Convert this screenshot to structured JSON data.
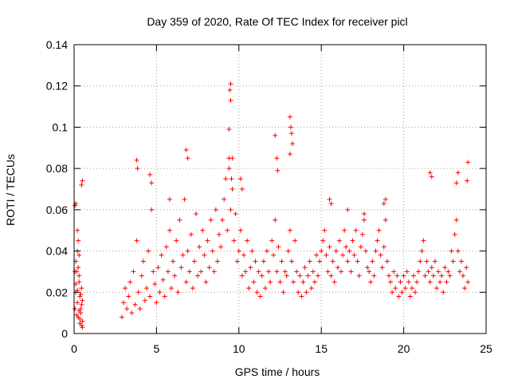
{
  "chart_data": {
    "type": "scatter",
    "title": "Day 359 of 2020, Rate Of TEC Index for receiver picl",
    "xlabel": "GPS time / hours",
    "ylabel": "ROTI / TECUs",
    "xlim": [
      0,
      25
    ],
    "ylim": [
      0,
      0.14
    ],
    "xticks": [
      0,
      5,
      10,
      15,
      20,
      25
    ],
    "yticks": [
      0,
      0.02,
      0.04,
      0.06,
      0.08,
      0.1,
      0.12,
      0.14
    ],
    "grid": true,
    "marker": "+",
    "color": "#ff0000",
    "series": [
      {
        "x": [
          0.05,
          0.1,
          0.15,
          0.2,
          0.25,
          0.3,
          0.35,
          0.4,
          0.45,
          0.5,
          0.1,
          0.2,
          0.3,
          0.4,
          0.5,
          0.15,
          0.25,
          0.35,
          0.45,
          0.05,
          0.2,
          0.3,
          0.35,
          0.4,
          0.5,
          0.1,
          0.25,
          0.45,
          0.3,
          0.2,
          2.9,
          3.0,
          3.1,
          3.2,
          3.3,
          3.4,
          3.5,
          3.6,
          3.7,
          3.8,
          3.9,
          4.0,
          4.1,
          4.2,
          4.3,
          4.4,
          4.5,
          4.6,
          4.7,
          4.8,
          4.9,
          5.0,
          5.1,
          5.2,
          5.3,
          5.4,
          5.5,
          5.6,
          5.7,
          5.8,
          5.9,
          6.0,
          6.1,
          6.2,
          6.3,
          6.4,
          6.5,
          6.6,
          6.7,
          6.8,
          6.9,
          7.0,
          7.1,
          7.2,
          7.3,
          7.4,
          7.5,
          7.6,
          7.7,
          7.8,
          7.9,
          8.0,
          8.1,
          8.2,
          8.3,
          8.4,
          8.5,
          8.6,
          8.7,
          8.8,
          8.9,
          9.0,
          9.1,
          9.2,
          9.3,
          9.4,
          9.5,
          9.6,
          9.7,
          9.8,
          9.9,
          10.0,
          10.1,
          10.2,
          10.3,
          10.4,
          10.5,
          10.6,
          10.7,
          10.8,
          10.9,
          11.0,
          11.1,
          11.2,
          11.3,
          11.4,
          11.5,
          11.6,
          11.7,
          11.8,
          11.9,
          12.0,
          12.1,
          12.2,
          12.3,
          12.4,
          12.5,
          12.6,
          12.7,
          12.8,
          12.9,
          13.0,
          13.1,
          13.2,
          13.3,
          13.4,
          13.5,
          13.6,
          13.7,
          13.8,
          13.9,
          14.0,
          14.1,
          14.2,
          14.3,
          14.4,
          14.5,
          14.6,
          14.7,
          14.8,
          14.9,
          15.0,
          15.1,
          15.2,
          15.3,
          15.4,
          15.5,
          15.6,
          15.7,
          15.8,
          15.9,
          16.0,
          16.1,
          16.2,
          16.3,
          16.4,
          16.5,
          16.6,
          16.7,
          16.8,
          16.9,
          17.0,
          17.1,
          17.2,
          17.3,
          17.4,
          17.5,
          17.6,
          17.7,
          17.8,
          17.9,
          18.0,
          18.1,
          18.2,
          18.3,
          18.4,
          18.5,
          18.6,
          18.7,
          18.8,
          18.9,
          19.0,
          19.1,
          19.2,
          19.3,
          19.4,
          19.5,
          19.6,
          19.7,
          19.8,
          19.9,
          20.0,
          20.1,
          20.2,
          20.3,
          20.4,
          20.5,
          20.6,
          20.7,
          20.8,
          20.9,
          21.0,
          21.1,
          21.2,
          21.3,
          21.4,
          21.5,
          21.6,
          21.7,
          21.8,
          21.9,
          22.0,
          22.1,
          22.2,
          22.3,
          22.4,
          22.5,
          22.6,
          22.7,
          22.8,
          22.9,
          23.0,
          23.1,
          23.2,
          23.3,
          23.4,
          23.5,
          23.6,
          23.7,
          23.8,
          23.9,
          3.8,
          3.85,
          4.6,
          4.7,
          6.8,
          6.9,
          9.4,
          9.5,
          9.45,
          9.5,
          9.4,
          9.55,
          9.6,
          10.1,
          10.2,
          12.2,
          12.3,
          12.35,
          13.1,
          13.15,
          13.2,
          13.25,
          13.1,
          21.6,
          21.7,
          23.2,
          23.3,
          23.9,
          23.85,
          0.5,
          0.45,
          0.1,
          0.05,
          18.9,
          18.8,
          15.5,
          15.6,
          5.8,
          17.6,
          16.6
        ],
        "y": [
          0.012,
          0.02,
          0.03,
          0.015,
          0.008,
          0.025,
          0.018,
          0.01,
          0.022,
          0.006,
          0.035,
          0.04,
          0.028,
          0.012,
          0.016,
          0.009,
          0.045,
          0.005,
          0.014,
          0.03,
          0.05,
          0.011,
          0.007,
          0.019,
          0.003,
          0.024,
          0.032,
          0.004,
          0.038,
          0.021,
          0.008,
          0.015,
          0.022,
          0.012,
          0.018,
          0.025,
          0.01,
          0.03,
          0.014,
          0.045,
          0.02,
          0.012,
          0.028,
          0.035,
          0.016,
          0.022,
          0.04,
          0.018,
          0.06,
          0.03,
          0.024,
          0.015,
          0.032,
          0.02,
          0.038,
          0.026,
          0.018,
          0.042,
          0.03,
          0.05,
          0.022,
          0.035,
          0.028,
          0.045,
          0.02,
          0.055,
          0.032,
          0.038,
          0.065,
          0.025,
          0.04,
          0.03,
          0.048,
          0.022,
          0.035,
          0.058,
          0.028,
          0.042,
          0.03,
          0.05,
          0.038,
          0.025,
          0.045,
          0.032,
          0.055,
          0.04,
          0.03,
          0.06,
          0.035,
          0.048,
          0.042,
          0.055,
          0.065,
          0.075,
          0.05,
          0.085,
          0.06,
          0.07,
          0.045,
          0.058,
          0.035,
          0.04,
          0.05,
          0.028,
          0.038,
          0.03,
          0.045,
          0.022,
          0.032,
          0.04,
          0.025,
          0.035,
          0.02,
          0.03,
          0.018,
          0.028,
          0.035,
          0.022,
          0.04,
          0.03,
          0.025,
          0.045,
          0.038,
          0.055,
          0.03,
          0.042,
          0.025,
          0.035,
          0.02,
          0.03,
          0.028,
          0.04,
          0.05,
          0.035,
          0.025,
          0.045,
          0.03,
          0.02,
          0.028,
          0.018,
          0.025,
          0.032,
          0.02,
          0.028,
          0.035,
          0.022,
          0.03,
          0.025,
          0.038,
          0.028,
          0.035,
          0.04,
          0.045,
          0.05,
          0.038,
          0.03,
          0.042,
          0.028,
          0.035,
          0.025,
          0.04,
          0.032,
          0.045,
          0.03,
          0.038,
          0.05,
          0.042,
          0.035,
          0.04,
          0.03,
          0.045,
          0.038,
          0.05,
          0.035,
          0.028,
          0.042,
          0.048,
          0.055,
          0.04,
          0.032,
          0.03,
          0.025,
          0.035,
          0.028,
          0.04,
          0.045,
          0.05,
          0.038,
          0.032,
          0.042,
          0.055,
          0.035,
          0.028,
          0.025,
          0.02,
          0.03,
          0.022,
          0.028,
          0.018,
          0.025,
          0.02,
          0.028,
          0.022,
          0.03,
          0.025,
          0.018,
          0.022,
          0.028,
          0.02,
          0.025,
          0.03,
          0.035,
          0.04,
          0.045,
          0.028,
          0.035,
          0.03,
          0.025,
          0.032,
          0.028,
          0.035,
          0.022,
          0.03,
          0.025,
          0.028,
          0.02,
          0.032,
          0.025,
          0.03,
          0.028,
          0.04,
          0.035,
          0.048,
          0.055,
          0.04,
          0.03,
          0.035,
          0.028,
          0.022,
          0.032,
          0.025,
          0.084,
          0.08,
          0.077,
          0.073,
          0.089,
          0.085,
          0.099,
          0.113,
          0.118,
          0.121,
          0.08,
          0.075,
          0.085,
          0.075,
          0.07,
          0.096,
          0.085,
          0.079,
          0.105,
          0.1,
          0.097,
          0.092,
          0.087,
          0.078,
          0.076,
          0.073,
          0.078,
          0.083,
          0.074,
          0.074,
          0.072,
          0.063,
          0.062,
          0.065,
          0.063,
          0.065,
          0.063,
          0.065,
          0.058,
          0.06
        ]
      }
    ]
  }
}
